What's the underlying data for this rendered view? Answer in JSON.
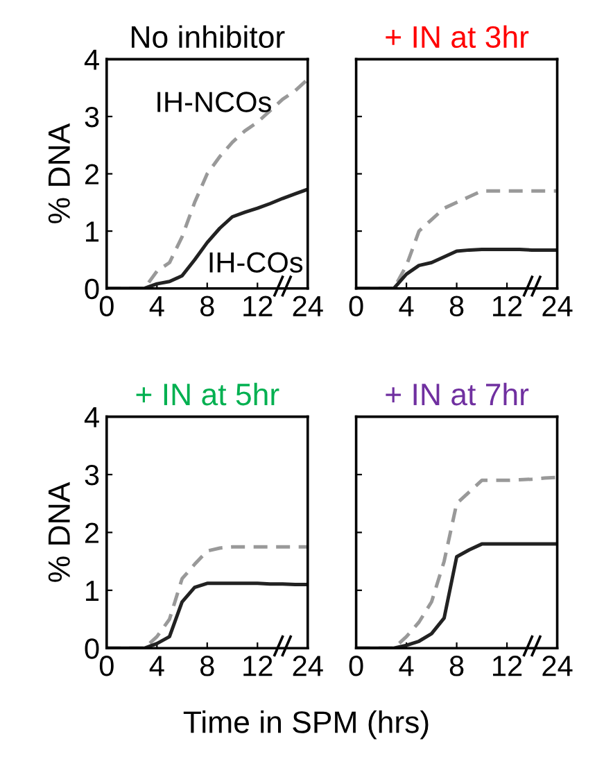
{
  "chart_data": [
    {
      "type": "line",
      "title": "No inhibitor",
      "ylabel": "% DNA",
      "categories": [
        "0",
        null,
        null,
        null,
        "4",
        null,
        null,
        null,
        "8",
        null,
        null,
        null,
        "12",
        null,
        null,
        null,
        "24"
      ],
      "ylim": [
        0,
        4
      ],
      "yticks": [
        0,
        1,
        2,
        3,
        4
      ],
      "grid": false,
      "legend": false,
      "series": [
        {
          "name": "IH-NCOs",
          "color": "#999999",
          "line_style": "dashed",
          "values": [
            0,
            0,
            0,
            0,
            0.3,
            0.45,
            0.9,
            1.5,
            2.0,
            2.3,
            2.55,
            2.75,
            2.9,
            3.1,
            3.3,
            3.45,
            3.65
          ]
        },
        {
          "name": "IH-COs",
          "color": "#222222",
          "line_style": "solid",
          "values": [
            0,
            0,
            0,
            0,
            0.08,
            0.12,
            0.22,
            0.5,
            0.8,
            1.05,
            1.25,
            1.33,
            1.4,
            1.48,
            1.57,
            1.65,
            1.73
          ]
        }
      ]
    },
    {
      "type": "line",
      "title": "+ IN at 3hr",
      "categories": [
        "0",
        null,
        null,
        null,
        "4",
        null,
        null,
        null,
        "8",
        null,
        null,
        null,
        "12",
        null,
        null,
        null,
        "24"
      ],
      "ylim": [
        0,
        4
      ],
      "yticks": [
        {
          "value": 0,
          "label": null
        },
        {
          "value": 1,
          "label": null
        },
        {
          "value": 2,
          "label": null
        },
        {
          "value": 3,
          "label": null
        },
        {
          "value": 4,
          "label": null
        }
      ],
      "tick_labels": "x",
      "grid": false,
      "legend": false,
      "series": [
        {
          "color": "#999999",
          "line_style": "dashed",
          "values": [
            0,
            0,
            0,
            0,
            0.4,
            1.0,
            1.2,
            1.4,
            1.5,
            1.6,
            1.7,
            1.7,
            1.7,
            1.7,
            1.7,
            1.7,
            1.7
          ]
        },
        {
          "color": "#222222",
          "line_style": "solid",
          "values": [
            0,
            0,
            0,
            0,
            0.25,
            0.4,
            0.45,
            0.55,
            0.65,
            0.67,
            0.68,
            0.68,
            0.68,
            0.68,
            0.67,
            0.67,
            0.67
          ]
        }
      ]
    },
    {
      "type": "line",
      "title": "+ IN at 5hr",
      "ylabel": "% DNA",
      "xlabel": "Time in SPM (hrs)",
      "categories": [
        "0",
        null,
        null,
        null,
        "4",
        null,
        null,
        null,
        "8",
        null,
        null,
        null,
        "12",
        null,
        null,
        null,
        "24"
      ],
      "ylim": [
        0,
        4
      ],
      "yticks": [
        0,
        1,
        2,
        3,
        4
      ],
      "grid": false,
      "legend": false,
      "series": [
        {
          "color": "#999999",
          "line_style": "dashed",
          "values": [
            0,
            0,
            0,
            0,
            0.2,
            0.5,
            1.2,
            1.45,
            1.68,
            1.73,
            1.75,
            1.75,
            1.75,
            1.75,
            1.75,
            1.75,
            1.75
          ]
        },
        {
          "color": "#222222",
          "line_style": "solid",
          "values": [
            0,
            0,
            0,
            0,
            0.08,
            0.2,
            0.8,
            1.05,
            1.12,
            1.12,
            1.12,
            1.12,
            1.12,
            1.11,
            1.11,
            1.1,
            1.1
          ]
        }
      ]
    },
    {
      "type": "line",
      "title": "+ IN at 7hr",
      "categories": [
        "0",
        null,
        null,
        null,
        "4",
        null,
        null,
        null,
        "8",
        null,
        null,
        null,
        "12",
        null,
        null,
        null,
        "24"
      ],
      "ylim": [
        0,
        4
      ],
      "yticks": [
        {
          "value": 0,
          "label": null
        },
        {
          "value": 1,
          "label": null
        },
        {
          "value": 2,
          "label": null
        },
        {
          "value": 3,
          "label": null
        },
        {
          "value": 4,
          "label": null
        }
      ],
      "tick_labels": "x",
      "grid": false,
      "legend": false,
      "series": [
        {
          "color": "#999999",
          "line_style": "dashed",
          "values": [
            0,
            0,
            0,
            0,
            0.2,
            0.45,
            0.8,
            1.5,
            2.5,
            2.7,
            2.9,
            2.9,
            2.9,
            2.91,
            2.92,
            2.94,
            2.95
          ]
        },
        {
          "color": "#222222",
          "line_style": "solid",
          "values": [
            0,
            0,
            0,
            0,
            0.05,
            0.12,
            0.25,
            0.52,
            1.58,
            1.7,
            1.8,
            1.8,
            1.8,
            1.8,
            1.8,
            1.8,
            1.8
          ]
        }
      ]
    }
  ]
}
